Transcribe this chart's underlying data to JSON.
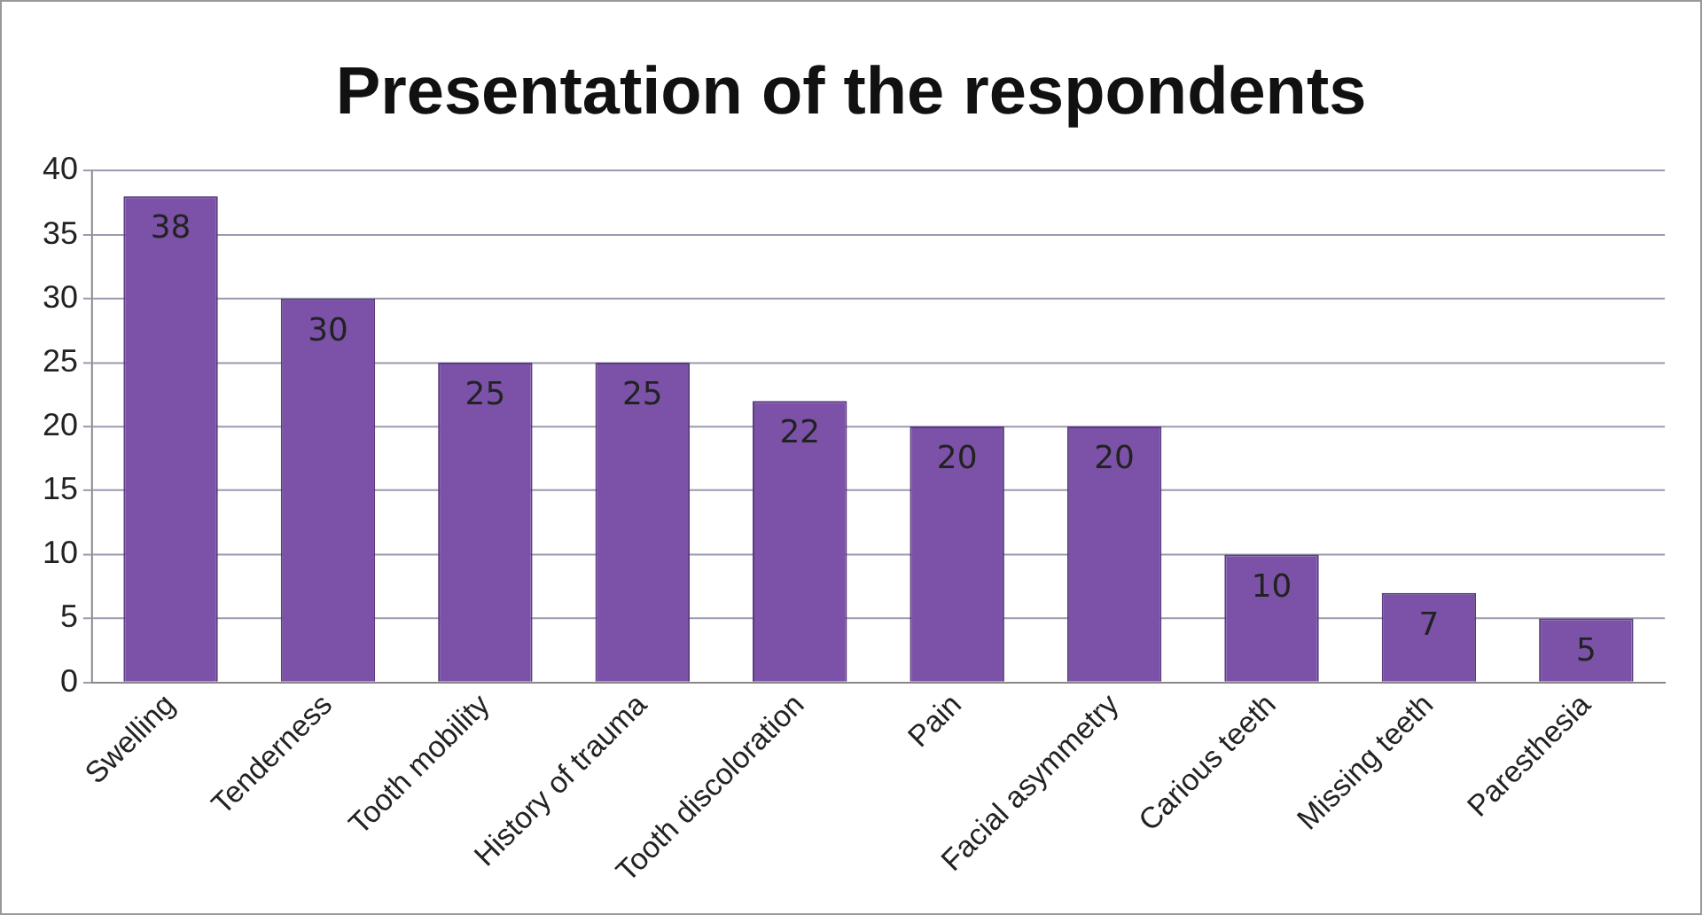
{
  "chart_data": {
    "type": "bar",
    "title": "Presentation of the respondents",
    "categories": [
      "Swelling",
      "Tenderness",
      "Tooth mobility",
      "History of trauma",
      "Tooth discoloration",
      "Pain",
      "Facial asymmetry",
      "Carious teeth",
      "Missing teeth",
      "Paresthesia"
    ],
    "values": [
      38,
      30,
      25,
      25,
      22,
      20,
      20,
      10,
      7,
      5
    ],
    "color": "#7b52a8",
    "ylim": [
      0,
      40
    ],
    "yticks": [
      0,
      5,
      10,
      15,
      20,
      25,
      30,
      35,
      40
    ],
    "grid": "y",
    "legend": false,
    "data_labels": true
  }
}
